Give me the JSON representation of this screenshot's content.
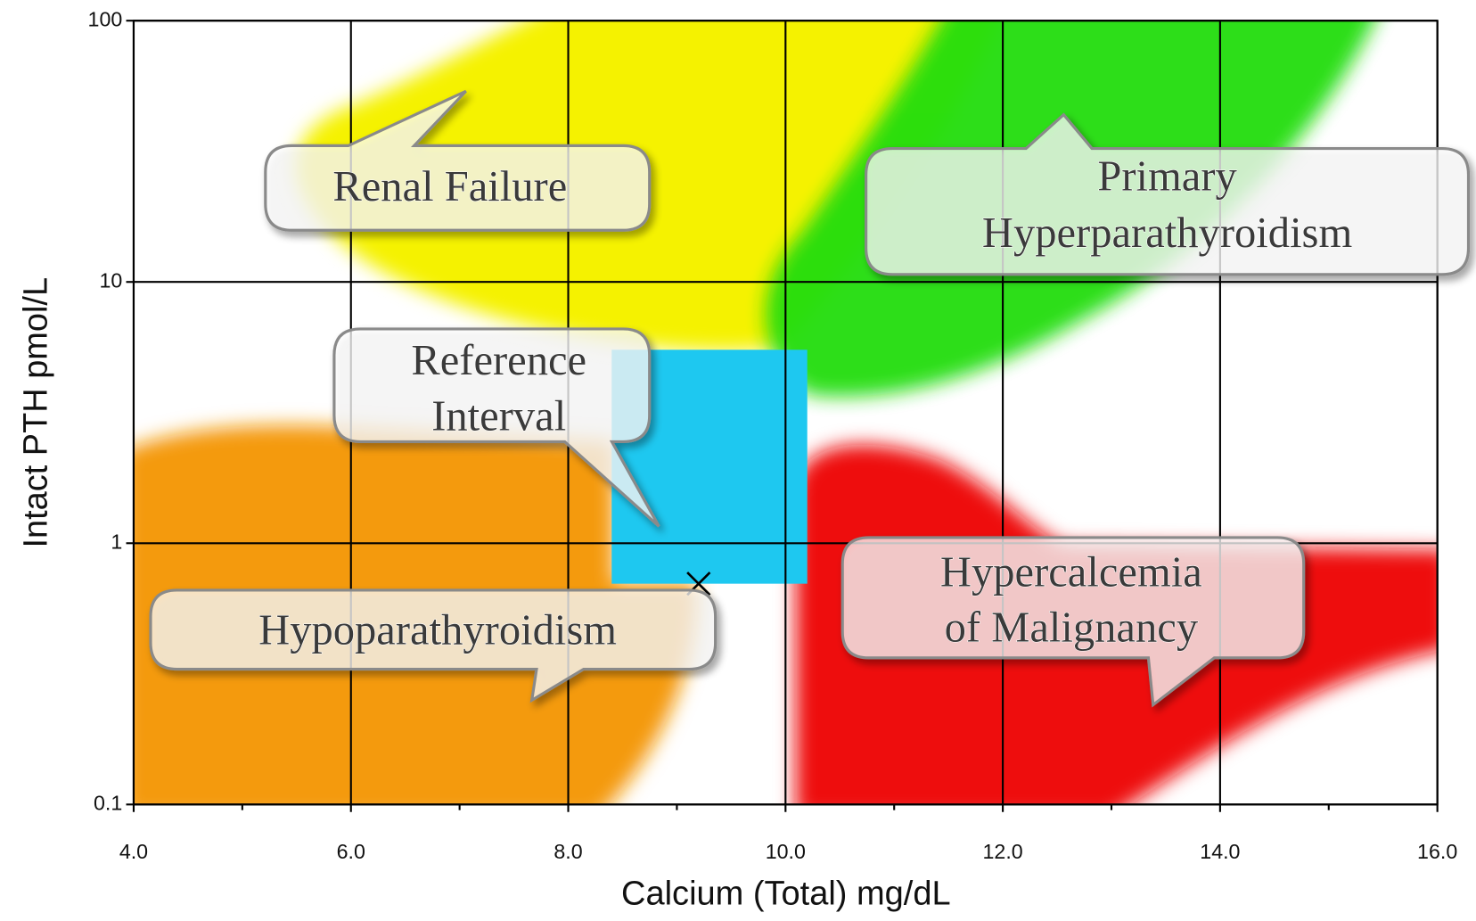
{
  "chart_data": {
    "type": "nomogram",
    "xlabel": "Calcium (Total) mg/dL",
    "ylabel": "Intact PTH  pmol/L",
    "xlim": [
      4,
      16
    ],
    "xticks": [
      {
        "value": 4,
        "label": "4.0"
      },
      {
        "value": 6,
        "label": "6.0"
      },
      {
        "value": 8,
        "label": "8.0"
      },
      {
        "value": 10,
        "label": "10.0"
      },
      {
        "value": 12,
        "label": "12.0"
      },
      {
        "value": 14,
        "label": "14.0"
      },
      {
        "value": 16,
        "label": "16.0"
      }
    ],
    "xminorticks": [
      5,
      7,
      9,
      11,
      13,
      15
    ],
    "ylim": [
      0.1,
      100
    ],
    "yticks": [
      0.1,
      1,
      10,
      100
    ],
    "ylog": true,
    "grid": true,
    "reference_interval": {
      "x": [
        8.4,
        10.2
      ],
      "y": [
        0.7,
        5.5
      ],
      "color": "#1ec8f0"
    },
    "point": {
      "x": 9.2,
      "y": 0.7
    },
    "annotations": [
      {
        "lines": [
          "Renal Failure"
        ]
      },
      {
        "lines": [
          "Primary",
          "Hyperparathyroidism"
        ]
      },
      {
        "lines": [
          "Reference",
          "Interval"
        ]
      },
      {
        "lines": [
          "Hypoparathyroidism"
        ]
      },
      {
        "lines": [
          "Hypercalcemia",
          "of Malignancy"
        ]
      }
    ]
  }
}
